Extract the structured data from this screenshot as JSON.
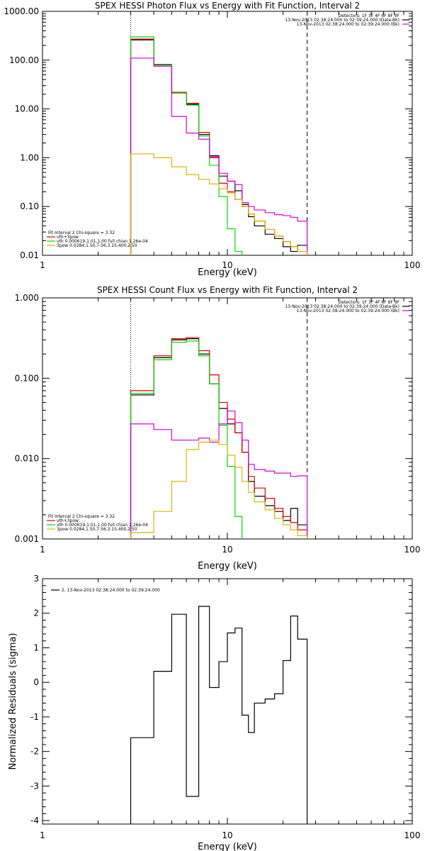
{
  "colors": {
    "background": "#ffffff",
    "axes": "#000000",
    "black_series": "#000000",
    "red_series": "#dd0000",
    "green_series": "#00d800",
    "magenta_series": "#d800d8",
    "yellow_series": "#d8b800"
  },
  "chart_data": [
    {
      "type": "line",
      "title": "SPEX HESSI Photon Flux vs Energy with Fit Function, Interval 2",
      "xlabel": "Energy (keV)",
      "ylabel": "",
      "xscale": "log",
      "yscale": "log",
      "xlim": [
        1,
        100
      ],
      "ylim": [
        0.01,
        1000
      ],
      "xticks": [
        "1",
        "10",
        "100"
      ],
      "yticks": [
        "0.01",
        "0.10",
        "1.00",
        "10.00",
        "100.00",
        "1000.00"
      ],
      "vlines": [
        {
          "x": 3.0,
          "style": "dotted"
        },
        {
          "x": 27.0,
          "style": "dashed"
        }
      ],
      "info_lines": [
        "Detectors: 1F 3F 4F 6F 8F 9F",
        "13-Nov-2013 02:38:24.000 to 02:39:24.000 (Data-Bk)",
        "13-Nov-2013 02:38:24.000 to 02:39:24.000 (Bk)"
      ],
      "legend": [
        "Fit Interval 2   Chi-square = 3.32",
        "vth+3pow",
        "vth 0.000619,1.01,1.00  full chian 1.26e-04",
        "3pow 0.0284,1.50,7.56,3.15,400,2.50"
      ],
      "series": [
        {
          "name": "13-Nov-2013 02:38:24.000 to 02:39:24.000 (Data-Bk)",
          "color": "#000000",
          "edges": [
            3,
            4,
            5,
            6,
            7,
            8,
            9,
            10,
            11,
            12,
            13,
            14,
            16,
            18,
            20,
            22,
            24,
            27
          ],
          "values": [
            260,
            80,
            21,
            12.5,
            3.0,
            1.1,
            0.42,
            0.33,
            0.21,
            0.11,
            0.062,
            0.04,
            0.027,
            0.022,
            0.015,
            0.012,
            0.016
          ]
        },
        {
          "name": "vth+3pow",
          "color": "#dd0000",
          "edges": [
            3,
            4,
            5,
            6,
            7,
            8,
            9,
            10,
            11,
            12,
            13,
            14,
            16,
            18,
            20,
            22,
            24,
            27
          ],
          "values": [
            270,
            82,
            22,
            13,
            3.3,
            1.0,
            0.3,
            0.2,
            0.14,
            0.1,
            0.07,
            0.05,
            0.034,
            0.025,
            0.019,
            0.015,
            0.012
          ]
        },
        {
          "name": "vth 0.000619,1.01,1.00  full chian 1.26e-04",
          "color": "#00d800",
          "edges": [
            3,
            4,
            5,
            6,
            7,
            8,
            9,
            10,
            11,
            12
          ],
          "values": [
            300,
            82,
            21,
            12,
            2.8,
            0.7,
            0.16,
            0.035,
            0.012
          ]
        },
        {
          "name": "13-Nov-2013 02:38:24.000 to 02:39:24.000 (Bk)",
          "color": "#d800d8",
          "edges": [
            3,
            4,
            5,
            6,
            7,
            8,
            9,
            10,
            11,
            12,
            13,
            14,
            16,
            18,
            20,
            22,
            24,
            27
          ],
          "values": [
            110,
            75,
            7.0,
            3.2,
            2.4,
            1.05,
            0.48,
            0.33,
            0.28,
            0.12,
            0.1,
            0.085,
            0.075,
            0.068,
            0.065,
            0.06,
            0.05
          ]
        },
        {
          "name": "3pow 0.0284,1.50,7.56,3.15,400,2.50",
          "color": "#d8b800",
          "edges": [
            3,
            4,
            5,
            6,
            7,
            8,
            9,
            10,
            11,
            12,
            13,
            14,
            16,
            18,
            20,
            22,
            24,
            27
          ],
          "values": [
            1.2,
            1.0,
            0.65,
            0.45,
            0.36,
            0.29,
            0.23,
            0.19,
            0.14,
            0.1,
            0.07,
            0.05,
            0.034,
            0.025,
            0.019,
            0.015,
            0.012
          ]
        }
      ]
    },
    {
      "type": "line",
      "title": "SPEX HESSI Count Flux vs Energy with Fit Function, Interval 2",
      "xlabel": "Energy (keV)",
      "ylabel": "",
      "xscale": "log",
      "yscale": "log",
      "xlim": [
        1,
        100
      ],
      "ylim": [
        0.001,
        1
      ],
      "xticks": [
        "1",
        "10",
        "100"
      ],
      "yticks": [
        "0.001",
        "0.010",
        "0.100",
        "1.000"
      ],
      "vlines": [
        {
          "x": 3.0,
          "style": "dotted"
        },
        {
          "x": 27.0,
          "style": "dashed"
        }
      ],
      "info_lines": [
        "Detectors: 1F 3F 4F 6F 8F 9F",
        "13-Nov-2013 02:38:24.000 to 02:39:24.000 (Data-Bk)",
        "13-Nov-2013 02:38:24.000 to 02:39:24.000 (Bk)"
      ],
      "legend": [
        "Fit Interval 2   Chi-square = 3.32",
        "vth+3pow",
        "vth 0.000619,1.01,1.00  full chian 1.26e-04",
        "3pow 0.0284,1.50,7.56,3.15,400,2.50"
      ],
      "series": [
        {
          "name": "13-Nov-2013 02:38:24.000 to 02:39:24.000 (Data-Bk)",
          "color": "#000000",
          "edges": [
            3,
            4,
            5,
            6,
            7,
            8,
            9,
            10,
            11,
            12,
            13,
            14,
            16,
            18,
            20,
            22,
            24,
            27
          ],
          "values": [
            0.062,
            0.18,
            0.3,
            0.31,
            0.2,
            0.085,
            0.042,
            0.027,
            0.021,
            0.012,
            0.0052,
            0.0034,
            0.0026,
            0.0022,
            0.0017,
            0.0024,
            0.0015
          ]
        },
        {
          "name": "vth+3pow",
          "color": "#dd0000",
          "edges": [
            3,
            4,
            5,
            6,
            7,
            8,
            9,
            10,
            11,
            12,
            13,
            14,
            16,
            18,
            20,
            22,
            24,
            27
          ],
          "values": [
            0.07,
            0.19,
            0.31,
            0.32,
            0.22,
            0.11,
            0.05,
            0.031,
            0.021,
            0.012,
            0.006,
            0.0043,
            0.0032,
            0.0024,
            0.0019,
            0.0016,
            0.0013
          ]
        },
        {
          "name": "vth 0.000619,1.01,1.00  full chian 1.26e-04",
          "color": "#00d800",
          "edges": [
            3,
            4,
            5,
            6,
            7,
            8,
            9,
            10,
            11,
            12
          ],
          "values": [
            0.065,
            0.17,
            0.28,
            0.29,
            0.19,
            0.085,
            0.026,
            0.008,
            0.0019
          ]
        },
        {
          "name": "13-Nov-2013 02:38:24.000 to 02:39:24.000 (Bk)",
          "color": "#d800d8",
          "edges": [
            3,
            4,
            5,
            6,
            7,
            8,
            9,
            10,
            11,
            12,
            13,
            14,
            16,
            18,
            20,
            22,
            24,
            27
          ],
          "values": [
            0.027,
            0.023,
            0.017,
            0.017,
            0.018,
            0.016,
            0.027,
            0.039,
            0.028,
            0.017,
            0.0085,
            0.0073,
            0.007,
            0.0066,
            0.0066,
            0.006,
            0.0061
          ]
        },
        {
          "name": "3pow 0.0284,1.50,7.56,3.15,400,2.50",
          "color": "#d8b800",
          "edges": [
            3,
            4,
            5,
            6,
            7,
            8,
            9,
            10,
            11,
            12,
            13,
            14,
            16,
            18,
            20,
            22,
            24,
            27
          ],
          "values": [
            0.0012,
            0.0022,
            0.0052,
            0.013,
            0.016,
            0.017,
            0.015,
            0.011,
            0.0078,
            0.0052,
            0.0038,
            0.0029,
            0.0023,
            0.0018,
            0.0015,
            0.0013,
            0.0011
          ]
        }
      ]
    },
    {
      "type": "line",
      "title": "",
      "xlabel": "Energy (keV)",
      "ylabel": "Normalized Residuals (sigma)",
      "xscale": "log",
      "yscale": "linear",
      "xlim": [
        1,
        100
      ],
      "ylim": [
        -4.1,
        3
      ],
      "xticks": [
        "1",
        "10",
        "100"
      ],
      "yticks": [
        "-4",
        "-3",
        "-2",
        "-1",
        "0",
        "1",
        "2",
        "3"
      ],
      "legend": [
        "2, 13-Nov-2013 02:38:24.000 to 02:39:24.000"
      ],
      "series": [
        {
          "name": "2, 13-Nov-2013 02:38:24.000 to 02:39:24.000",
          "color": "#000000",
          "edges": [
            3,
            4,
            5,
            6,
            7,
            8,
            9,
            10,
            11,
            12,
            13,
            14,
            16,
            18,
            20,
            22,
            24,
            27
          ],
          "values": [
            -1.6,
            0.32,
            1.97,
            -3.3,
            2.2,
            -0.15,
            0.6,
            1.43,
            1.57,
            -0.95,
            -1.45,
            -0.6,
            -0.48,
            -0.33,
            0.63,
            1.92,
            1.25
          ]
        }
      ]
    }
  ]
}
